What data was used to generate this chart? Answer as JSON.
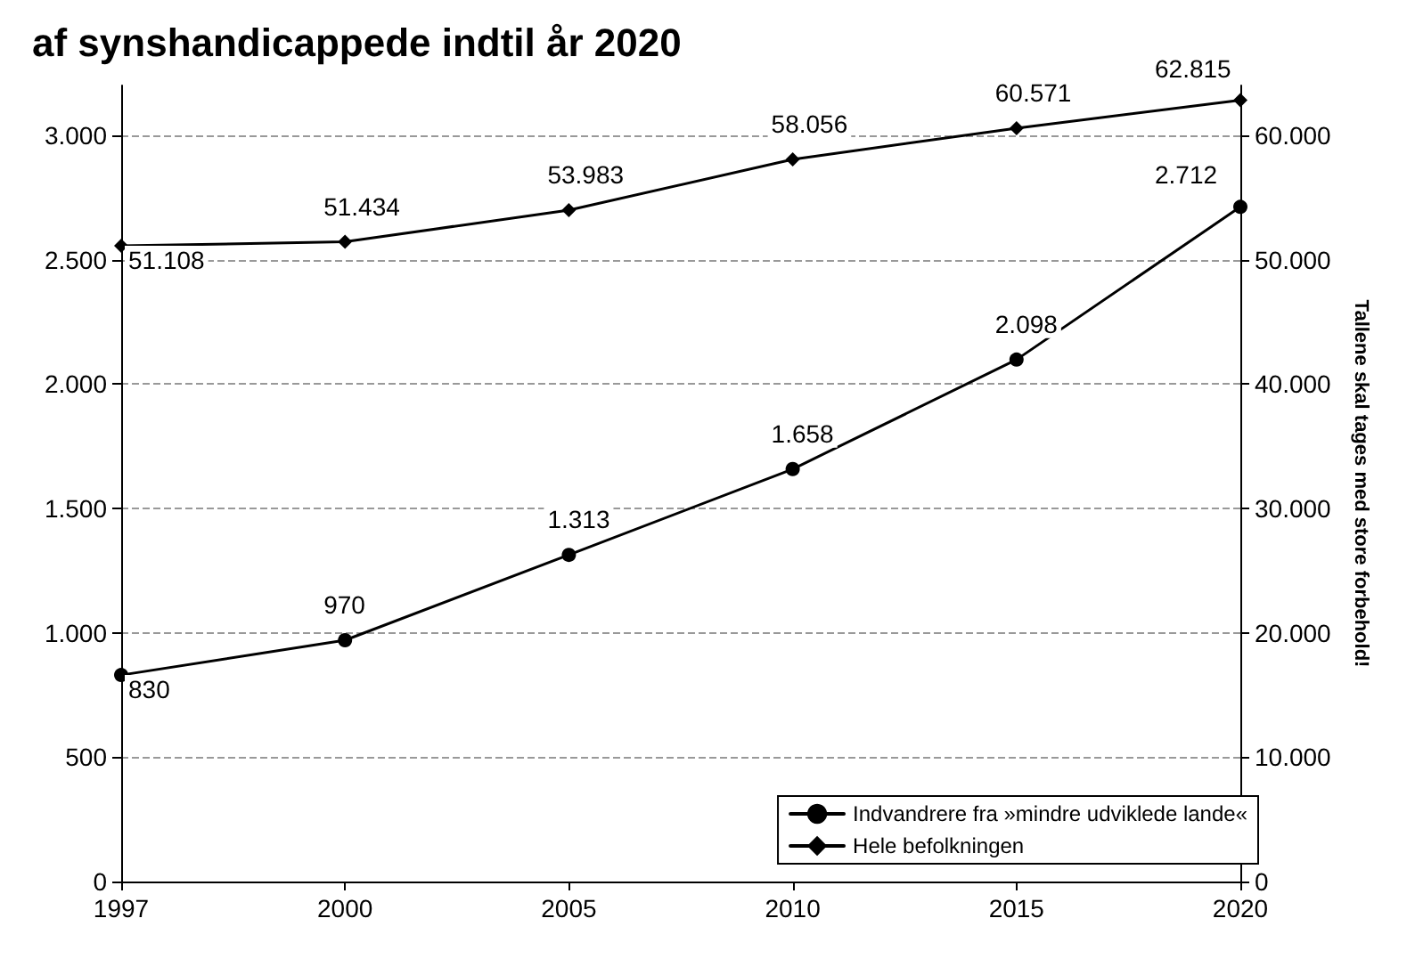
{
  "chart_data": {
    "type": "line",
    "title": "af synshandicappede indtil år 2020",
    "y2label": "Tallene skal tages med store forbehold!",
    "categories": [
      "1997",
      "2000",
      "2005",
      "2010",
      "2015",
      "2020"
    ],
    "series": [
      {
        "name": "Indvandrere fra »mindre udviklede lande«",
        "color": "#000000",
        "marker": "circle",
        "values": [
          830,
          970,
          1313,
          1658,
          2098,
          2712
        ],
        "value_labels": [
          "830",
          "970",
          "1.313",
          "1.658",
          "2.098",
          "2.712"
        ]
      },
      {
        "name": "Hele befolkningen",
        "color": "#000000",
        "marker": "diamond",
        "axis": "y2",
        "values": [
          51108,
          51434,
          53983,
          58056,
          60571,
          62815
        ],
        "value_labels": [
          "51.108",
          "51.434",
          "53.983",
          "58.056",
          "60.571",
          "62.815"
        ]
      }
    ],
    "ylim": [
      0,
      3200
    ],
    "yticks": [
      0,
      {
        "value": 500,
        "label": "500"
      },
      {
        "value": 1000,
        "label": "1.000"
      },
      {
        "value": 1500,
        "label": "1.500"
      },
      {
        "value": 2000,
        "label": "2.000"
      },
      {
        "value": 2500,
        "label": "2.500"
      },
      {
        "value": 3000,
        "label": "3.000"
      }
    ],
    "y2lim": [
      0,
      64000
    ],
    "y2ticks": [
      0,
      {
        "value": 10000,
        "label": "10.000"
      },
      {
        "value": 20000,
        "label": "20.000"
      },
      {
        "value": 30000,
        "label": "30.000"
      },
      {
        "value": 40000,
        "label": "40.000"
      },
      {
        "value": 50000,
        "label": "50.000"
      },
      {
        "value": 60000,
        "label": "60.000"
      }
    ],
    "grid": "y",
    "legend": "bottom right",
    "line_style": "solid"
  }
}
